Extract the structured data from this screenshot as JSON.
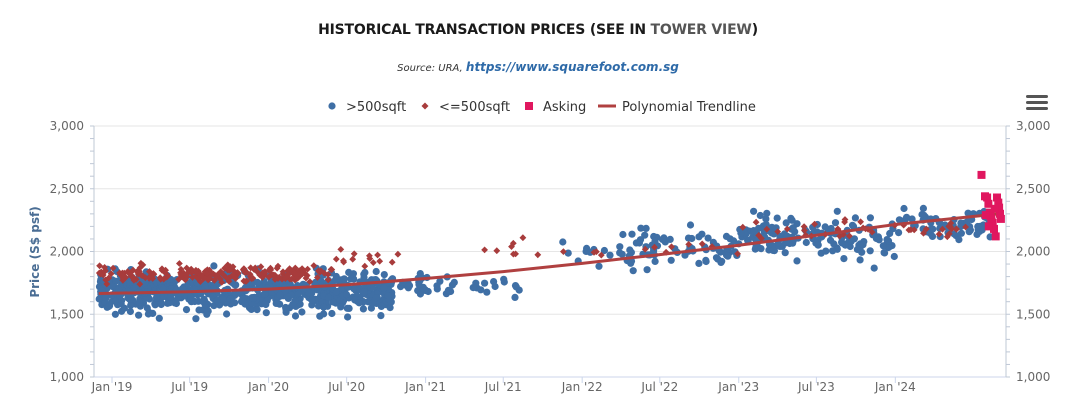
{
  "header": {
    "title_prefix": "HISTORICAL TRANSACTION PRICES (SEE IN ",
    "title_highlight": "TOWER VIEW",
    "title_suffix": ")",
    "source_prefix": "Source: URA, ",
    "source_link": "https://www.squarefoot.com.sg"
  },
  "menu": {
    "icon": "hamburger-menu-icon"
  },
  "chart_data": {
    "type": "scatter",
    "ylabel": "Price (S$ psf)",
    "ylim": [
      1000,
      3000
    ],
    "yticks": [
      1000,
      1500,
      2000,
      2500,
      3000
    ],
    "ytick_labels": [
      "1,000",
      "1,500",
      "2,000",
      "2,500",
      "3,000"
    ],
    "xlim": [
      "2018-11-20",
      "2024-09-15"
    ],
    "xticks": [
      "2019-01-01",
      "2019-07-01",
      "2020-01-01",
      "2020-07-01",
      "2021-01-01",
      "2021-07-01",
      "2022-01-01",
      "2022-07-01",
      "2023-01-01",
      "2023-07-01",
      "2024-01-01"
    ],
    "xtick_labels": [
      "Jan '19",
      "Jul '19",
      "Jan '20",
      "Jul '20",
      "Jan '21",
      "Jul '21",
      "Jan '22",
      "Jul '22",
      "Jan '23",
      "Jul '23",
      "Jan '24"
    ],
    "legend_position": "top-center",
    "colors": {
      "large": "#3f6fa5",
      "small": "#a83c3c",
      "asking": "#e0175f",
      "trend": "#b04040"
    },
    "series": [
      {
        "name": ">500sqft",
        "marker": "circle",
        "segments": [
          {
            "x_start": "2018-12-01",
            "x_end": "2020-10-15",
            "y_min": 1440,
            "y_max": 1900,
            "y_center": 1680,
            "count": 720
          },
          {
            "x_start": "2020-10-15",
            "x_end": "2021-03-01",
            "y_min": 1580,
            "y_max": 1850,
            "y_center": 1730,
            "count": 30
          },
          {
            "x_start": "2021-03-01",
            "x_end": "2021-09-01",
            "y_min": 1570,
            "y_max": 1800,
            "y_center": 1730,
            "count": 16
          },
          {
            "x_start": "2021-11-01",
            "x_end": "2022-04-01",
            "y_min": 1880,
            "y_max": 2200,
            "y_center": 1980,
            "count": 12
          },
          {
            "x_start": "2022-04-01",
            "x_end": "2022-12-31",
            "y_min": 1840,
            "y_max": 2290,
            "y_center": 2040,
            "count": 75
          },
          {
            "x_start": "2023-01-01",
            "x_end": "2023-12-31",
            "y_min": 1820,
            "y_max": 2320,
            "y_center": 2120,
            "count": 150
          },
          {
            "x_start": "2024-01-01",
            "x_end": "2024-08-20",
            "y_min": 2000,
            "y_max": 2360,
            "y_center": 2230,
            "count": 70
          }
        ]
      },
      {
        "name": "<=500sqft",
        "marker": "diamond",
        "segments": [
          {
            "x_start": "2018-12-01",
            "x_end": "2020-05-31",
            "y_min": 1740,
            "y_max": 1960,
            "y_center": 1820,
            "count": 210
          },
          {
            "x_start": "2020-06-01",
            "x_end": "2020-11-15",
            "y_min": 1850,
            "y_max": 2040,
            "y_center": 1950,
            "count": 14
          },
          {
            "x_start": "2021-05-01",
            "x_end": "2022-12-31",
            "y_min": 1860,
            "y_max": 2110,
            "y_center": 2010,
            "count": 20
          },
          {
            "x_start": "2023-01-01",
            "x_end": "2024-06-30",
            "y_min": 2080,
            "y_max": 2330,
            "y_center": 2170,
            "count": 45
          }
        ]
      },
      {
        "name": "Asking",
        "marker": "square",
        "points": [
          [
            "2024-07-20",
            2610
          ],
          [
            "2024-07-28",
            2440
          ],
          [
            "2024-08-02",
            2430
          ],
          [
            "2024-08-05",
            2380
          ],
          [
            "2024-08-08",
            2310
          ],
          [
            "2024-08-10",
            2280
          ],
          [
            "2024-08-12",
            2260
          ],
          [
            "2024-08-15",
            2230
          ],
          [
            "2024-08-18",
            2180
          ],
          [
            "2024-08-22",
            2120
          ],
          [
            "2024-08-25",
            2430
          ],
          [
            "2024-08-28",
            2390
          ],
          [
            "2024-08-30",
            2350
          ],
          [
            "2024-09-01",
            2300
          ],
          [
            "2024-09-03",
            2260
          ],
          [
            "2024-08-06",
            2200
          ],
          [
            "2024-07-30",
            2290
          ],
          [
            "2024-08-20",
            2340
          ]
        ]
      },
      {
        "name": "Polynomial Trendline",
        "marker": "line",
        "points": [
          [
            "2018-12-01",
            1665
          ],
          [
            "2019-07-01",
            1680
          ],
          [
            "2020-01-01",
            1700
          ],
          [
            "2020-07-01",
            1735
          ],
          [
            "2021-01-01",
            1785
          ],
          [
            "2021-07-01",
            1840
          ],
          [
            "2022-01-01",
            1905
          ],
          [
            "2022-07-01",
            1975
          ],
          [
            "2023-01-01",
            2050
          ],
          [
            "2023-07-01",
            2130
          ],
          [
            "2024-01-01",
            2215
          ],
          [
            "2024-08-31",
            2300
          ]
        ]
      }
    ]
  }
}
